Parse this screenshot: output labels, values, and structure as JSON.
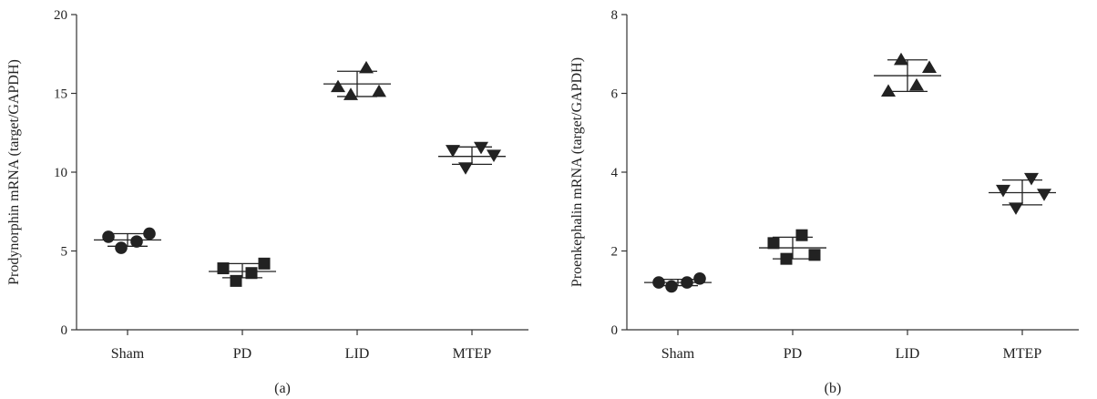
{
  "chart_data": [
    {
      "type": "scatter",
      "panel_label": "(a)",
      "ylabel": "Prodynorphin mRNA (target/GAPDH)",
      "categories": [
        "Sham",
        "PD",
        "LID",
        "MTEP"
      ],
      "ylim": [
        0,
        20
      ],
      "yticks": [
        0,
        5,
        10,
        15,
        20
      ],
      "grid": false,
      "groups": [
        {
          "category": "Sham",
          "marker": "circle",
          "points": [
            5.9,
            5.2,
            5.6,
            6.1
          ],
          "mean": 5.7,
          "sd_low": 5.3,
          "sd_high": 6.1
        },
        {
          "category": "PD",
          "marker": "square",
          "points": [
            3.9,
            3.1,
            3.6,
            4.2
          ],
          "mean": 3.7,
          "sd_low": 3.3,
          "sd_high": 4.2
        },
        {
          "category": "LID",
          "marker": "triangle-up",
          "points": [
            15.4,
            14.9,
            16.6,
            15.1
          ],
          "mean": 15.6,
          "sd_low": 14.8,
          "sd_high": 16.4
        },
        {
          "category": "MTEP",
          "marker": "triangle-down",
          "points": [
            11.4,
            10.3,
            11.6,
            11.1
          ],
          "mean": 11.0,
          "sd_low": 10.5,
          "sd_high": 11.6
        }
      ]
    },
    {
      "type": "scatter",
      "panel_label": "(b)",
      "ylabel": "Proenkephalin mRNA (target/GAPDH)",
      "categories": [
        "Sham",
        "PD",
        "LID",
        "MTEP"
      ],
      "ylim": [
        0,
        8
      ],
      "yticks": [
        0,
        2,
        4,
        6,
        8
      ],
      "grid": false,
      "groups": [
        {
          "category": "Sham",
          "marker": "circle",
          "points": [
            1.2,
            1.1,
            1.2,
            1.3
          ],
          "mean": 1.2,
          "sd_low": 1.12,
          "sd_high": 1.28
        },
        {
          "category": "PD",
          "marker": "square",
          "points": [
            2.2,
            1.8,
            2.4,
            1.9
          ],
          "mean": 2.08,
          "sd_low": 1.8,
          "sd_high": 2.35
        },
        {
          "category": "LID",
          "marker": "triangle-up",
          "points": [
            6.05,
            6.85,
            6.2,
            6.65
          ],
          "mean": 6.45,
          "sd_low": 6.05,
          "sd_high": 6.85
        },
        {
          "category": "MTEP",
          "marker": "triangle-down",
          "points": [
            3.55,
            3.1,
            3.85,
            3.45
          ],
          "mean": 3.48,
          "sd_low": 3.17,
          "sd_high": 3.8
        }
      ]
    }
  ],
  "colors": {
    "marker": "#222222",
    "axis": "#333333",
    "background": "#ffffff"
  }
}
